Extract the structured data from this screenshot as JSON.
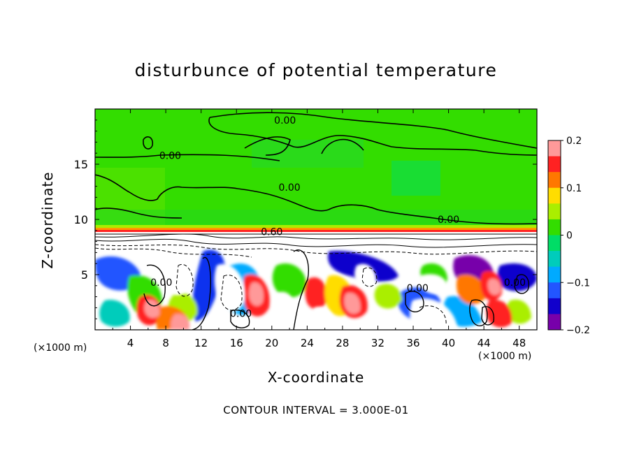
{
  "chart_data": {
    "type": "heatmap",
    "title": "disturbunce of potential temperature",
    "xlabel": "X-coordinate",
    "ylabel": "Z-coordinate",
    "x_unit": "(×1000 m)",
    "caption": "CONTOUR INTERVAL = 3.000E-01",
    "xlim": [
      0,
      50
    ],
    "ylim": [
      0,
      20
    ],
    "x_ticks": [
      4,
      8,
      12,
      16,
      20,
      24,
      28,
      32,
      36,
      40,
      44,
      48
    ],
    "y_ticks": [
      5,
      10,
      15
    ],
    "colorbar": {
      "range": [
        -0.2,
        0.2
      ],
      "ticks": [
        {
          "value": 0.2,
          "label": "0.2"
        },
        {
          "value": 0.1,
          "label": "0.1"
        },
        {
          "value": 0.0,
          "label": "0"
        },
        {
          "value": -0.1,
          "label": "−0.1"
        },
        {
          "value": -0.2,
          "label": "−0.2"
        }
      ],
      "colors": [
        "#ff9999",
        "#ff2222",
        "#ff7700",
        "#ffdd00",
        "#aaee00",
        "#33dd00",
        "#00dd66",
        "#00ccbb",
        "#00aaff",
        "#2255ff",
        "#1100cc",
        "#7700aa"
      ]
    },
    "contour_labels": [
      {
        "x": 21.5,
        "y": 19.0,
        "text": "0.00"
      },
      {
        "x": 8.5,
        "y": 15.8,
        "text": "0.00"
      },
      {
        "x": 22.0,
        "y": 12.9,
        "text": "0.00"
      },
      {
        "x": 40.0,
        "y": 10.0,
        "text": "0.00"
      },
      {
        "x": 20.0,
        "y": 8.9,
        "text": "0.60"
      },
      {
        "x": 7.5,
        "y": 4.3,
        "text": "0.00"
      },
      {
        "x": 16.5,
        "y": 1.5,
        "text": "0.00"
      },
      {
        "x": 36.5,
        "y": 3.8,
        "text": "0.00"
      },
      {
        "x": 47.5,
        "y": 4.3,
        "text": "0.00"
      }
    ],
    "field_regions": {
      "upper_layer": {
        "z_range": [
          9,
          20
        ],
        "value": 0.0
      },
      "inversion_line": {
        "z": 8.9,
        "value": 0.15
      },
      "lower_layer": {
        "z_range": [
          0,
          8.8
        ],
        "value_range": [
          -0.2,
          0.2
        ]
      }
    }
  }
}
